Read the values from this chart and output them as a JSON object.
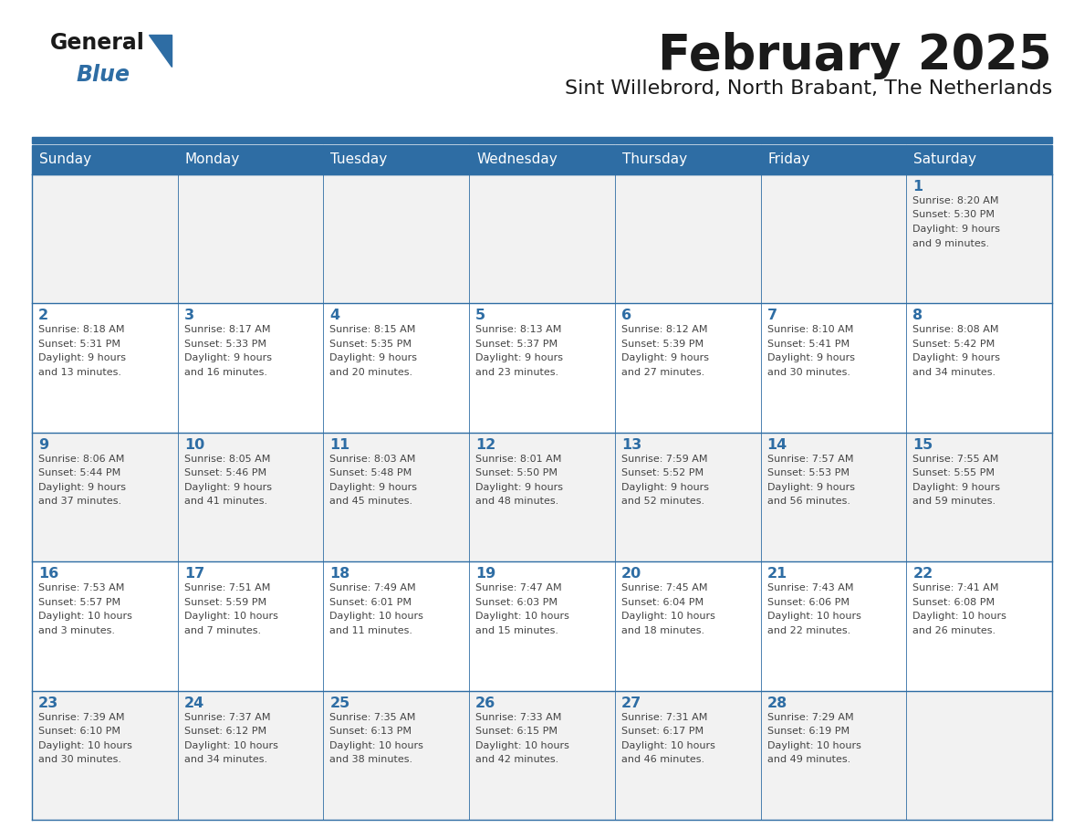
{
  "title": "February 2025",
  "subtitle": "Sint Willebrord, North Brabant, The Netherlands",
  "header_bg": "#2E6DA4",
  "header_text_color": "#FFFFFF",
  "cell_bg_odd": "#F2F2F2",
  "cell_bg_even": "#FFFFFF",
  "border_color": "#2E6DA4",
  "title_color": "#1a1a1a",
  "day_number_color": "#2E6DA4",
  "info_text_color": "#444444",
  "days_of_week": [
    "Sunday",
    "Monday",
    "Tuesday",
    "Wednesday",
    "Thursday",
    "Friday",
    "Saturday"
  ],
  "weeks": [
    [
      null,
      null,
      null,
      null,
      null,
      null,
      1
    ],
    [
      2,
      3,
      4,
      5,
      6,
      7,
      8
    ],
    [
      9,
      10,
      11,
      12,
      13,
      14,
      15
    ],
    [
      16,
      17,
      18,
      19,
      20,
      21,
      22
    ],
    [
      23,
      24,
      25,
      26,
      27,
      28,
      null
    ]
  ],
  "day_data": {
    "1": {
      "sunrise": "8:20 AM",
      "sunset": "5:30 PM",
      "daylight": "9 hours and 9 minutes"
    },
    "2": {
      "sunrise": "8:18 AM",
      "sunset": "5:31 PM",
      "daylight": "9 hours and 13 minutes"
    },
    "3": {
      "sunrise": "8:17 AM",
      "sunset": "5:33 PM",
      "daylight": "9 hours and 16 minutes"
    },
    "4": {
      "sunrise": "8:15 AM",
      "sunset": "5:35 PM",
      "daylight": "9 hours and 20 minutes"
    },
    "5": {
      "sunrise": "8:13 AM",
      "sunset": "5:37 PM",
      "daylight": "9 hours and 23 minutes"
    },
    "6": {
      "sunrise": "8:12 AM",
      "sunset": "5:39 PM",
      "daylight": "9 hours and 27 minutes"
    },
    "7": {
      "sunrise": "8:10 AM",
      "sunset": "5:41 PM",
      "daylight": "9 hours and 30 minutes"
    },
    "8": {
      "sunrise": "8:08 AM",
      "sunset": "5:42 PM",
      "daylight": "9 hours and 34 minutes"
    },
    "9": {
      "sunrise": "8:06 AM",
      "sunset": "5:44 PM",
      "daylight": "9 hours and 37 minutes"
    },
    "10": {
      "sunrise": "8:05 AM",
      "sunset": "5:46 PM",
      "daylight": "9 hours and 41 minutes"
    },
    "11": {
      "sunrise": "8:03 AM",
      "sunset": "5:48 PM",
      "daylight": "9 hours and 45 minutes"
    },
    "12": {
      "sunrise": "8:01 AM",
      "sunset": "5:50 PM",
      "daylight": "9 hours and 48 minutes"
    },
    "13": {
      "sunrise": "7:59 AM",
      "sunset": "5:52 PM",
      "daylight": "9 hours and 52 minutes"
    },
    "14": {
      "sunrise": "7:57 AM",
      "sunset": "5:53 PM",
      "daylight": "9 hours and 56 minutes"
    },
    "15": {
      "sunrise": "7:55 AM",
      "sunset": "5:55 PM",
      "daylight": "9 hours and 59 minutes"
    },
    "16": {
      "sunrise": "7:53 AM",
      "sunset": "5:57 PM",
      "daylight": "10 hours and 3 minutes"
    },
    "17": {
      "sunrise": "7:51 AM",
      "sunset": "5:59 PM",
      "daylight": "10 hours and 7 minutes"
    },
    "18": {
      "sunrise": "7:49 AM",
      "sunset": "6:01 PM",
      "daylight": "10 hours and 11 minutes"
    },
    "19": {
      "sunrise": "7:47 AM",
      "sunset": "6:03 PM",
      "daylight": "10 hours and 15 minutes"
    },
    "20": {
      "sunrise": "7:45 AM",
      "sunset": "6:04 PM",
      "daylight": "10 hours and 18 minutes"
    },
    "21": {
      "sunrise": "7:43 AM",
      "sunset": "6:06 PM",
      "daylight": "10 hours and 22 minutes"
    },
    "22": {
      "sunrise": "7:41 AM",
      "sunset": "6:08 PM",
      "daylight": "10 hours and 26 minutes"
    },
    "23": {
      "sunrise": "7:39 AM",
      "sunset": "6:10 PM",
      "daylight": "10 hours and 30 minutes"
    },
    "24": {
      "sunrise": "7:37 AM",
      "sunset": "6:12 PM",
      "daylight": "10 hours and 34 minutes"
    },
    "25": {
      "sunrise": "7:35 AM",
      "sunset": "6:13 PM",
      "daylight": "10 hours and 38 minutes"
    },
    "26": {
      "sunrise": "7:33 AM",
      "sunset": "6:15 PM",
      "daylight": "10 hours and 42 minutes"
    },
    "27": {
      "sunrise": "7:31 AM",
      "sunset": "6:17 PM",
      "daylight": "10 hours and 46 minutes"
    },
    "28": {
      "sunrise": "7:29 AM",
      "sunset": "6:19 PM",
      "daylight": "10 hours and 49 minutes"
    }
  }
}
